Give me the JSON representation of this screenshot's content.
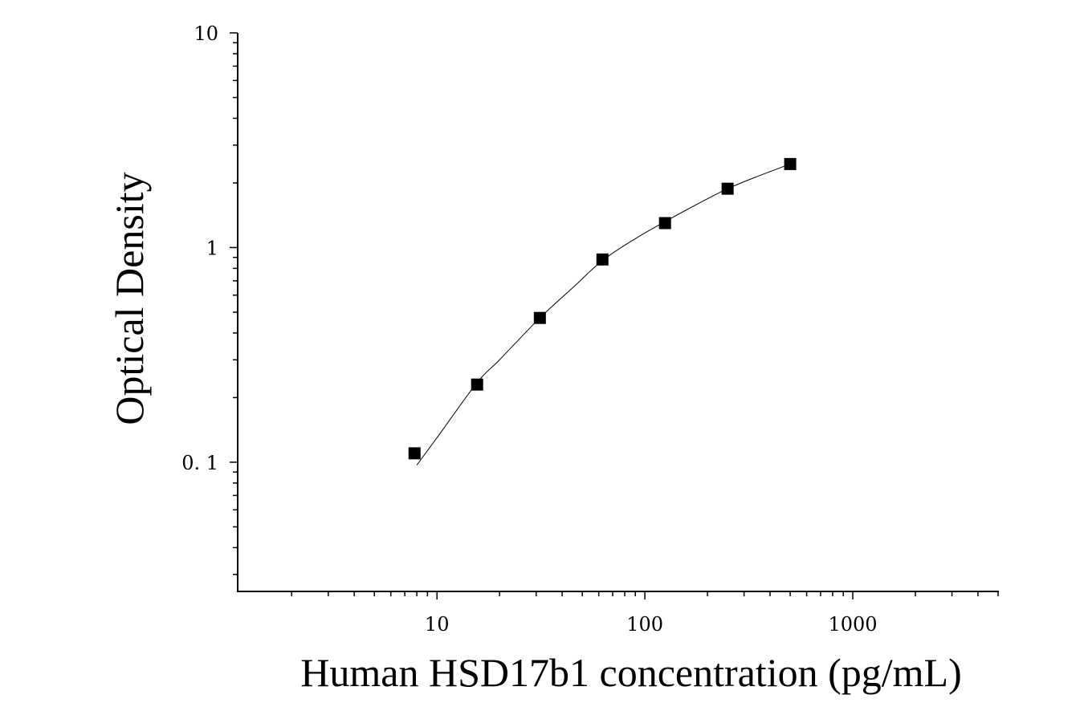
{
  "chart_data": {
    "type": "scatter",
    "title": "",
    "xlabel": "Human HSD17b1 concentration (pg/mL)",
    "ylabel": "Optical Density",
    "x_scale": "log",
    "y_scale": "log",
    "xlim": [
      1.1,
      5000
    ],
    "ylim": [
      0.025,
      10
    ],
    "x_ticks": [
      {
        "value": 10,
        "label": "10"
      },
      {
        "value": 100,
        "label": "100"
      },
      {
        "value": 1000,
        "label": "1000"
      }
    ],
    "y_ticks": [
      {
        "value": 0.1,
        "label": "0. 1"
      },
      {
        "value": 1,
        "label": "1"
      },
      {
        "value": 10,
        "label": "10"
      }
    ],
    "grid": false,
    "legend": "none",
    "marker": "square",
    "colors": {
      "marker": "#000000",
      "line": "#000000",
      "axis": "#000000"
    },
    "series": [
      {
        "x": [
          7.8,
          15.6,
          31.25,
          62.5,
          125,
          250,
          500
        ],
        "y": [
          0.11,
          0.23,
          0.47,
          0.88,
          1.3,
          1.88,
          2.45
        ]
      }
    ],
    "fit_curve": {
      "type": "smooth",
      "x": [
        8,
        10,
        15.6,
        20,
        31.25,
        45,
        62.5,
        90,
        125,
        180,
        250,
        350,
        500
      ],
      "y": [
        0.097,
        0.13,
        0.235,
        0.3,
        0.47,
        0.65,
        0.87,
        1.1,
        1.32,
        1.6,
        1.88,
        2.15,
        2.45
      ]
    }
  }
}
